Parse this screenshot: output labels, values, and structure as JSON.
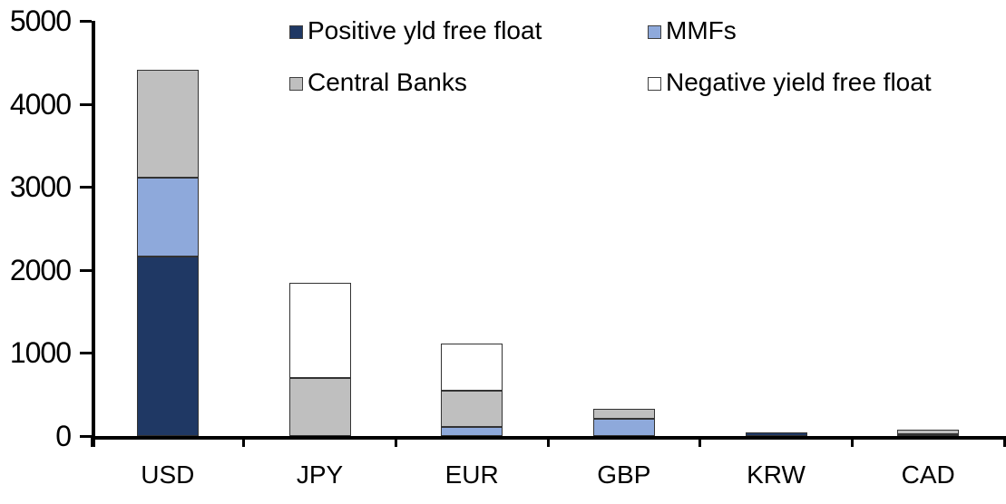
{
  "chart_data": {
    "type": "bar",
    "stacked": true,
    "title": "",
    "xlabel": "",
    "ylabel": "",
    "categories": [
      "USD",
      "JPY",
      "EUR",
      "GBP",
      "KRW",
      "CAD"
    ],
    "series": [
      {
        "name": "Positive yld free float",
        "color": "#1F3864",
        "values": [
          2160,
          0,
          0,
          0,
          40,
          25
        ]
      },
      {
        "name": "MMFs",
        "color": "#8EA9DB",
        "values": [
          950,
          0,
          110,
          210,
          0,
          0
        ]
      },
      {
        "name": "Central Banks",
        "color": "#BFBFBF",
        "values": [
          1300,
          700,
          435,
          120,
          0,
          50
        ]
      },
      {
        "name": "Negative yield free float",
        "color": "#FFFFFF",
        "values": [
          0,
          1150,
          565,
          0,
          0,
          0
        ]
      }
    ],
    "totals": [
      4410,
      1850,
      1110,
      330,
      40,
      75
    ],
    "ylim": [
      0,
      5000
    ],
    "yticks": [
      0,
      1000,
      2000,
      3000,
      4000,
      5000
    ],
    "grid": false,
    "legend_position": "top",
    "legend_layout": "2x2"
  },
  "legend": {
    "items": [
      {
        "label": "Positive yld free float",
        "color": "#1F3864"
      },
      {
        "label": "MMFs",
        "color": "#8EA9DB"
      },
      {
        "label": "Central Banks",
        "color": "#BFBFBF"
      },
      {
        "label": "Negative yield free float",
        "color": "#FFFFFF"
      }
    ]
  },
  "colors": {
    "axis": "#000000",
    "bar_outline": "#333333",
    "background": "#FFFFFF"
  }
}
